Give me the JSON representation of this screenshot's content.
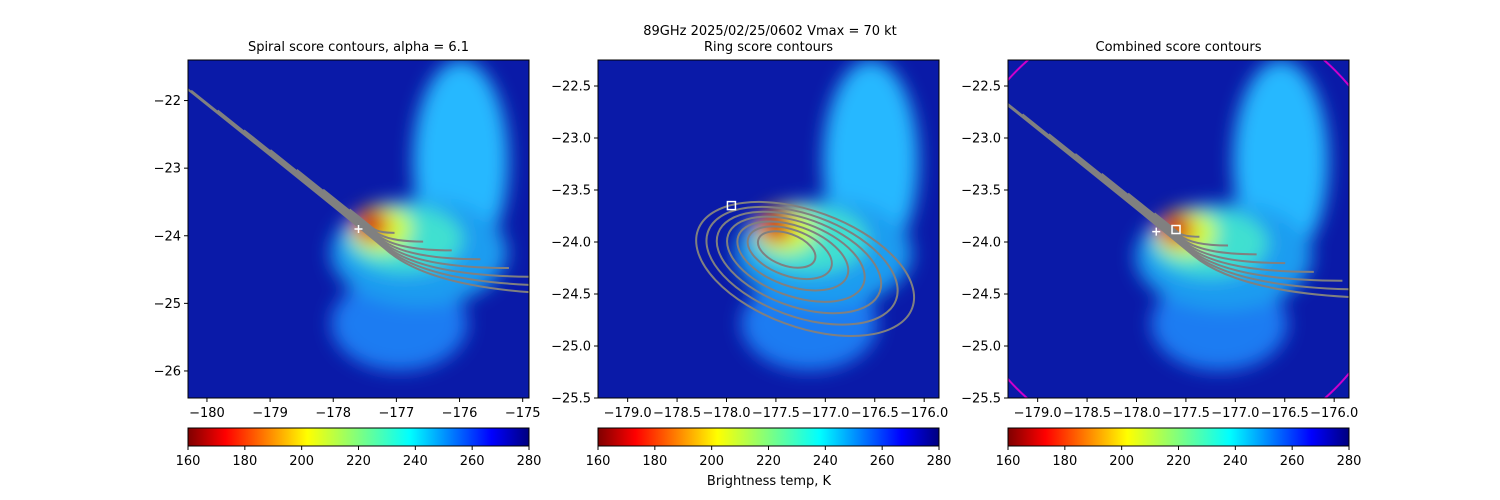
{
  "figure": {
    "suptitle": "89GHz  2025/02/25/0602    Vmax = 70 kt",
    "shared_xlabel": "Brightness temp, K",
    "colormap": "jet_r",
    "contour_color": "#808080",
    "marker_color": "#ffffff",
    "circle_color": "#cc00cc"
  },
  "chart_data": [
    {
      "type": "heatmap",
      "title": "Spiral score contours, alpha =  6.1",
      "xlim": [
        -180.3,
        -174.9
      ],
      "ylim": [
        -26.4,
        -21.4
      ],
      "xticks": [
        -180,
        -179,
        -178,
        -177,
        -176,
        -175
      ],
      "yticks": [
        -22,
        -23,
        -24,
        -25,
        -26
      ],
      "xtick_labels": [
        "−180",
        "−179",
        "−178",
        "−177",
        "−176",
        "−175"
      ],
      "ytick_labels": [
        "−22",
        "−23",
        "−24",
        "−25",
        "−26"
      ],
      "colorbar": {
        "range": [
          160,
          280
        ],
        "ticks": [
          "160",
          "180",
          "200",
          "220",
          "240",
          "260",
          "280"
        ]
      },
      "center": [
        -177.4,
        -23.85
      ],
      "cross_marker": [
        -177.6,
        -23.9
      ],
      "square_marker": null,
      "contours": "spiral"
    },
    {
      "type": "heatmap",
      "title": "Ring score contours",
      "xlim": [
        -179.3,
        -175.85
      ],
      "ylim": [
        -25.5,
        -22.25
      ],
      "xticks": [
        -179.0,
        -178.5,
        -178.0,
        -177.5,
        -177.0,
        -176.5,
        -176.0
      ],
      "yticks": [
        -22.5,
        -23.0,
        -23.5,
        -24.0,
        -24.5,
        -25.0,
        -25.5
      ],
      "xtick_labels": [
        "−179.0",
        "−178.5",
        "−178.0",
        "−177.5",
        "−177.0",
        "−176.5",
        "−176.0"
      ],
      "ytick_labels": [
        "−22.5",
        "−23.0",
        "−23.5",
        "−24.0",
        "−24.5",
        "−25.0",
        "−25.5"
      ],
      "colorbar": {
        "range": [
          160,
          280
        ],
        "ticks": [
          "160",
          "180",
          "200",
          "220",
          "240",
          "260",
          "280"
        ]
      },
      "center": [
        -177.5,
        -23.85
      ],
      "cross_marker": null,
      "square_marker": [
        -177.95,
        -23.65
      ],
      "contours": "ring"
    },
    {
      "type": "heatmap",
      "title": "Combined score contours",
      "xlim": [
        -179.3,
        -175.85
      ],
      "ylim": [
        -25.5,
        -22.25
      ],
      "xticks": [
        -179.0,
        -178.5,
        -178.0,
        -177.5,
        -177.0,
        -176.5,
        -176.0
      ],
      "yticks": [
        -22.5,
        -23.0,
        -23.5,
        -24.0,
        -24.5,
        -25.0,
        -25.5
      ],
      "xtick_labels": [
        "−179.0",
        "−178.5",
        "−178.0",
        "−177.5",
        "−177.0",
        "−176.5",
        "−176.0"
      ],
      "ytick_labels": [
        "−22.5",
        "−23.0",
        "−23.5",
        "−24.0",
        "−24.5",
        "−25.0",
        "−25.5"
      ],
      "colorbar": {
        "range": [
          160,
          280
        ],
        "ticks": [
          "160",
          "180",
          "200",
          "220",
          "240",
          "260",
          "280"
        ]
      },
      "center": [
        -177.6,
        -23.88
      ],
      "cross_marker": [
        -177.8,
        -23.9
      ],
      "square_marker": [
        -177.6,
        -23.88
      ],
      "contours": "combined"
    }
  ]
}
